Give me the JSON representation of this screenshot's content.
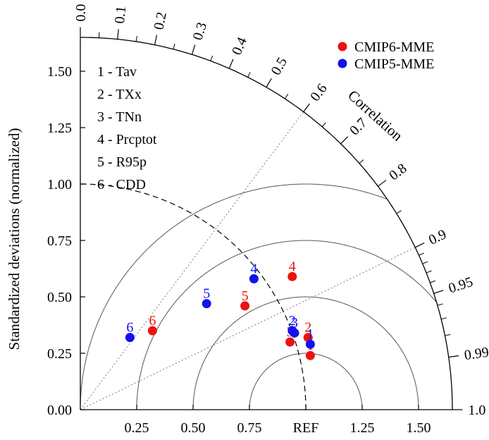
{
  "chart_data": {
    "type": "scatter",
    "subtype": "taylor-diagram",
    "ylabel": "Standardized deviations (normalized)",
    "correlation_label": "Correlation",
    "ref_label": "REF",
    "std_range": [
      0,
      1.65
    ],
    "std_ticks": [
      0.0,
      0.25,
      0.5,
      0.75,
      1.0,
      1.25,
      1.5
    ],
    "y_tick_labels": [
      "0.00",
      "0.25",
      "0.50",
      "0.75",
      "1.00",
      "1.25",
      "1.50"
    ],
    "x_tick_labels": [
      "0.25",
      "0.50",
      "0.75",
      "REF",
      "1.25",
      "1.50"
    ],
    "correlation_ticks": [
      {
        "value": 0.0,
        "label": "0.0"
      },
      {
        "value": 0.1,
        "label": "0.1"
      },
      {
        "value": 0.2,
        "label": "0.2"
      },
      {
        "value": 0.3,
        "label": "0.3"
      },
      {
        "value": 0.4,
        "label": "0.4"
      },
      {
        "value": 0.5,
        "label": "0.5"
      },
      {
        "value": 0.6,
        "label": "0.6"
      },
      {
        "value": 0.7,
        "label": "0.7"
      },
      {
        "value": 0.8,
        "label": "0.8"
      },
      {
        "value": 0.9,
        "label": "0.9"
      },
      {
        "value": 0.95,
        "label": "0.95"
      },
      {
        "value": 0.99,
        "label": "0.99"
      },
      {
        "value": 1.0,
        "label": "1.0"
      }
    ],
    "correlation_radial_lines": [
      0.6,
      0.9
    ],
    "rms_arcs": [
      0.25,
      0.5,
      0.75,
      1.0
    ],
    "ref_arc": 1.0,
    "grid": true,
    "legend_position": "top-right",
    "index_list": [
      {
        "id": "1",
        "name": "Tav"
      },
      {
        "id": "2",
        "name": "TXx"
      },
      {
        "id": "3",
        "name": "TNn"
      },
      {
        "id": "4",
        "name": "Prcptot"
      },
      {
        "id": "5",
        "name": "R95p"
      },
      {
        "id": "6",
        "name": "CDD"
      }
    ],
    "series": [
      {
        "name": "CMIP6-MME",
        "color": "#ee1111",
        "points": [
          {
            "label": "1",
            "x": 1.02,
            "y": 0.24
          },
          {
            "label": "2",
            "x": 1.01,
            "y": 0.32
          },
          {
            "label": "3",
            "x": 0.93,
            "y": 0.3
          },
          {
            "label": "4",
            "x": 0.94,
            "y": 0.59
          },
          {
            "label": "5",
            "x": 0.73,
            "y": 0.46
          },
          {
            "label": "6",
            "x": 0.32,
            "y": 0.35
          }
        ]
      },
      {
        "name": "CMIP5-MME",
        "color": "#1111ee",
        "points": [
          {
            "label": "1",
            "x": 1.02,
            "y": 0.29
          },
          {
            "label": "2",
            "x": 0.94,
            "y": 0.35
          },
          {
            "label": "3",
            "x": 0.95,
            "y": 0.34
          },
          {
            "label": "4",
            "x": 0.77,
            "y": 0.58
          },
          {
            "label": "5",
            "x": 0.56,
            "y": 0.47
          },
          {
            "label": "6",
            "x": 0.22,
            "y": 0.32
          }
        ]
      }
    ]
  }
}
